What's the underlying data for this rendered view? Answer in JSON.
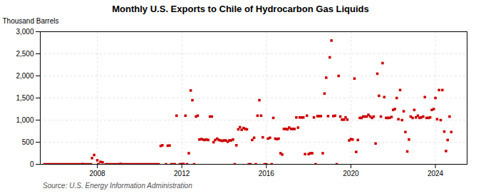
{
  "chart_data": {
    "type": "scatter",
    "title": "Monthly U.S. Exports to Chile of Hydrocarbon Gas Liquids",
    "ylabel": "Thousand Barrels",
    "caption": "Source: U.S. Energy Information Administration",
    "color": "#cc0000",
    "marker": "square",
    "grid": true,
    "xlim": [
      2005.3,
      2025.5
    ],
    "xticks": [
      2008,
      2012,
      2016,
      2020,
      2024
    ],
    "ylim": [
      0,
      3000
    ],
    "yticks": [
      0,
      500,
      {
        "value": 1000,
        "label": "1,000"
      },
      {
        "value": 1500,
        "label": "1,500"
      },
      {
        "value": 2000,
        "label": "2,000"
      },
      {
        "value": 2500,
        "label": "2,500"
      },
      {
        "value": 3000,
        "label": "3,000"
      }
    ],
    "x": [
      2005.5,
      2005.6,
      2005.7,
      2005.8,
      2005.9,
      2006.0,
      2006.1,
      2006.2,
      2006.3,
      2006.4,
      2006.5,
      2006.6,
      2006.7,
      2006.8,
      2006.9,
      2007.0,
      2007.1,
      2007.2,
      2007.3,
      2007.4,
      2007.5,
      2007.6,
      2007.7,
      2007.75,
      2007.85,
      2008.0,
      2008.05,
      2008.15,
      2008.25,
      2008.4,
      2008.5,
      2008.6,
      2008.7,
      2008.8,
      2008.9,
      2009.0,
      2009.1,
      2009.2,
      2009.3,
      2009.4,
      2009.5,
      2009.6,
      2009.7,
      2009.8,
      2009.9,
      2010.0,
      2010.1,
      2010.2,
      2010.3,
      2010.4,
      2010.5,
      2010.6,
      2010.7,
      2010.8,
      2010.9,
      2011.0,
      2011.08,
      2011.25,
      2011.33,
      2011.42,
      2011.5,
      2011.6,
      2011.67,
      2011.75,
      2011.9,
      2012.0,
      2012.08,
      2012.17,
      2012.25,
      2012.33,
      2012.42,
      2012.5,
      2012.58,
      2012.67,
      2012.75,
      2012.83,
      2012.92,
      2013.0,
      2013.08,
      2013.17,
      2013.25,
      2013.33,
      2013.42,
      2013.5,
      2013.58,
      2013.67,
      2013.75,
      2013.83,
      2013.92,
      2014.0,
      2014.08,
      2014.17,
      2014.25,
      2014.33,
      2014.42,
      2014.5,
      2014.58,
      2014.67,
      2014.75,
      2014.83,
      2014.92,
      2015.0,
      2015.08,
      2015.17,
      2015.25,
      2015.33,
      2015.42,
      2015.5,
      2015.58,
      2015.67,
      2015.75,
      2015.83,
      2015.92,
      2016.0,
      2016.08,
      2016.17,
      2016.25,
      2016.33,
      2016.42,
      2016.5,
      2016.58,
      2016.67,
      2016.75,
      2016.83,
      2016.92,
      2017.0,
      2017.08,
      2017.17,
      2017.25,
      2017.33,
      2017.42,
      2017.5,
      2017.58,
      2017.67,
      2017.75,
      2017.83,
      2017.92,
      2018.0,
      2018.08,
      2018.17,
      2018.25,
      2018.33,
      2018.42,
      2018.5,
      2018.58,
      2018.67,
      2018.75,
      2018.83,
      2018.92,
      2019.0,
      2019.08,
      2019.17,
      2019.25,
      2019.33,
      2019.42,
      2019.5,
      2019.58,
      2019.67,
      2019.75,
      2019.83,
      2019.92,
      2020.0,
      2020.08,
      2020.17,
      2020.25,
      2020.33,
      2020.42,
      2020.5,
      2020.58,
      2020.67,
      2020.75,
      2020.83,
      2020.92,
      2021.0,
      2021.08,
      2021.17,
      2021.25,
      2021.33,
      2021.42,
      2021.5,
      2021.58,
      2021.67,
      2021.75,
      2021.83,
      2021.92,
      2022.0,
      2022.08,
      2022.17,
      2022.25,
      2022.33,
      2022.42,
      2022.5,
      2022.58,
      2022.67,
      2022.75,
      2022.83,
      2022.92,
      2023.0,
      2023.08,
      2023.17,
      2023.25,
      2023.33,
      2023.42,
      2023.5,
      2023.58,
      2023.67,
      2023.75,
      2023.83,
      2023.92,
      2024.0,
      2024.08,
      2024.17,
      2024.25,
      2024.33,
      2024.42,
      2024.5,
      2024.58,
      2024.67,
      2024.75
    ],
    "values": [
      0,
      0,
      0,
      0,
      0,
      0,
      0,
      0,
      0,
      0,
      0,
      0,
      0,
      0,
      0,
      0,
      0,
      0,
      5,
      0,
      0,
      0,
      0,
      140,
      210,
      90,
      5,
      55,
      45,
      0,
      0,
      0,
      0,
      0,
      0,
      0,
      8,
      0,
      0,
      0,
      0,
      0,
      0,
      0,
      0,
      0,
      0,
      0,
      0,
      0,
      0,
      0,
      0,
      0,
      0,
      415,
      430,
      0,
      420,
      425,
      0,
      0,
      0,
      1100,
      0,
      5,
      5,
      1100,
      0,
      250,
      1670,
      1450,
      0,
      1080,
      1100,
      560,
      570,
      560,
      550,
      560,
      550,
      1080,
      1080,
      500,
      550,
      580,
      550,
      540,
      530,
      540,
      540,
      510,
      540,
      540,
      560,
      0,
      430,
      790,
      840,
      780,
      820,
      800,
      790,
      0,
      0,
      550,
      600,
      0,
      1100,
      1450,
      1100,
      610,
      0,
      0,
      580,
      600,
      0,
      1050,
      580,
      570,
      580,
      250,
      220,
      800,
      800,
      790,
      830,
      800,
      800,
      800,
      1060,
      830,
      1060,
      1060,
      1060,
      230,
      1100,
      230,
      250,
      250,
      1060,
      0,
      1090,
      1090,
      1090,
      250,
      1600,
      1960,
      1090,
      2420,
      2800,
      1090,
      1100,
      0,
      2000,
      1080,
      1010,
      1010,
      1060,
      1010,
      540,
      570,
      560,
      1940,
      280,
      550,
      1050,
      1050,
      1080,
      1080,
      1080,
      1120,
      1080,
      1050,
      1080,
      470,
      2050,
      1550,
      1080,
      2290,
      1520,
      1050,
      1050,
      1050,
      1070,
      1230,
      1250,
      1500,
      1020,
      1680,
      1000,
      1200,
      730,
      290,
      560,
      1080,
      1050,
      1230,
      1060,
      1100,
      1050,
      1060,
      1080,
      1520,
      1050,
      1050,
      1060,
      1230,
      1250,
      1500,
      1020,
      1680,
      1000,
      1680,
      740,
      300,
      550,
      1080,
      730
    ]
  }
}
